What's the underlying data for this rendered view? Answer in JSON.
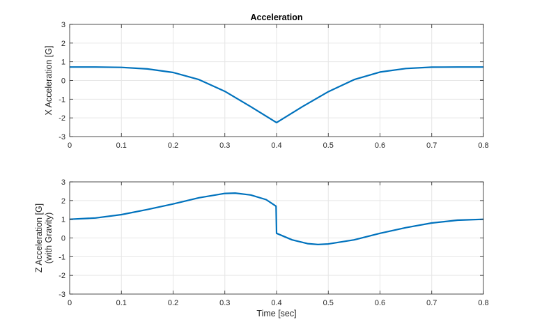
{
  "chart_data": [
    {
      "type": "line",
      "title": "Acceleration",
      "xlabel": "",
      "ylabel": "X Acceleration [G]",
      "xlim": [
        0,
        0.8
      ],
      "ylim": [
        -3,
        3
      ],
      "xticks": [
        "0",
        "0.1",
        "0.2",
        "0.3",
        "0.4",
        "0.5",
        "0.6",
        "0.7",
        "0.8"
      ],
      "yticks": [
        "3",
        "2",
        "1",
        "0",
        "-1",
        "-2",
        "-3"
      ],
      "grid": true,
      "color": "#0072BD",
      "series": [
        {
          "name": "X Acceleration",
          "x": [
            0,
            0.05,
            0.1,
            0.15,
            0.2,
            0.25,
            0.3,
            0.35,
            0.4,
            0.45,
            0.5,
            0.55,
            0.6,
            0.65,
            0.7,
            0.75,
            0.8
          ],
          "values": [
            0.72,
            0.72,
            0.7,
            0.62,
            0.43,
            0.05,
            -0.58,
            -1.4,
            -2.25,
            -1.4,
            -0.6,
            0.05,
            0.45,
            0.64,
            0.71,
            0.72,
            0.72
          ]
        }
      ]
    },
    {
      "type": "line",
      "title": "",
      "xlabel": "Time [sec]",
      "ylabel": "Z Acceleration [G]\n(with Gravity)",
      "ylabel_lines": [
        "Z Acceleration [G]",
        "(with Gravity)"
      ],
      "xlim": [
        0,
        0.8
      ],
      "ylim": [
        -3,
        3
      ],
      "xticks": [
        "0",
        "0.1",
        "0.2",
        "0.3",
        "0.4",
        "0.5",
        "0.6",
        "0.7",
        "0.8"
      ],
      "yticks": [
        "3",
        "2",
        "1",
        "0",
        "-1",
        "-2",
        "-3"
      ],
      "grid": true,
      "color": "#0072BD",
      "series": [
        {
          "name": "Z Acceleration",
          "x": [
            0,
            0.05,
            0.1,
            0.15,
            0.2,
            0.25,
            0.3,
            0.32,
            0.35,
            0.38,
            0.399,
            0.4,
            0.43,
            0.46,
            0.48,
            0.5,
            0.55,
            0.6,
            0.65,
            0.7,
            0.75,
            0.8
          ],
          "values": [
            1.0,
            1.07,
            1.25,
            1.52,
            1.82,
            2.15,
            2.38,
            2.4,
            2.3,
            2.05,
            1.7,
            0.25,
            -0.1,
            -0.3,
            -0.35,
            -0.32,
            -0.1,
            0.25,
            0.55,
            0.8,
            0.95,
            1.0
          ]
        }
      ]
    }
  ]
}
